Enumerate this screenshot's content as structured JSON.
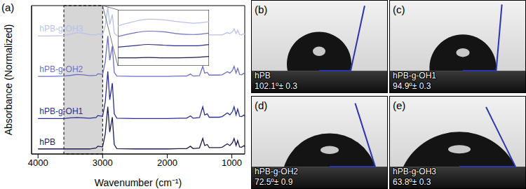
{
  "chart_data": [
    {
      "type": "line",
      "title": "(a)",
      "x_label": "Wavenumber (cm⁻¹)",
      "y_label": "Absorbance (Normalized)",
      "x": [
        4000,
        3800,
        3600,
        3500,
        3400,
        3300,
        3200,
        3100,
        3075,
        3000,
        2960,
        2920,
        2890,
        2850,
        2820,
        2780,
        2500,
        2000,
        1800,
        1700,
        1640,
        1600,
        1500,
        1450,
        1420,
        1380,
        1350,
        1300,
        1200,
        1150,
        1070,
        1030,
        990,
        965,
        935,
        910,
        880,
        850,
        810,
        800
      ],
      "xlim": [
        4100,
        800
      ],
      "xticks": [
        4000,
        3000,
        2000,
        1000
      ],
      "ylim": [
        0,
        4.4
      ],
      "tick_labels": "x",
      "shaded_range": [
        3600,
        3000
      ],
      "series": [
        {
          "name": "hPB",
          "color": "#1a1f4e",
          "values": [
            0.15,
            0.15,
            0.15,
            0.15,
            0.15,
            0.15,
            0.15,
            0.18,
            0.23,
            0.21,
            0.59,
            1.4,
            0.65,
            1.09,
            0.28,
            0.16,
            0.15,
            0.15,
            0.16,
            0.16,
            0.23,
            0.16,
            0.18,
            0.46,
            0.25,
            0.28,
            0.19,
            0.19,
            0.19,
            0.2,
            0.3,
            0.25,
            0.34,
            0.46,
            0.25,
            0.4,
            0.21,
            0.2,
            0.25,
            0.21
          ]
        },
        {
          "name": "hPB-g-OH1",
          "color": "#2b2f8f",
          "values": [
            1.05,
            1.05,
            1.05,
            1.07,
            1.08,
            1.07,
            1.06,
            1.08,
            1.14,
            1.12,
            1.54,
            2.45,
            1.61,
            2.1,
            1.19,
            1.06,
            1.05,
            1.05,
            1.06,
            1.06,
            1.13,
            1.06,
            1.08,
            1.4,
            1.16,
            1.19,
            1.09,
            1.09,
            1.09,
            1.11,
            1.22,
            1.16,
            1.26,
            1.4,
            1.16,
            1.33,
            1.12,
            1.11,
            1.16,
            1.12
          ]
        },
        {
          "name": "hPB-g-OH2",
          "color": "#6a6fc4",
          "values": [
            2.3,
            2.3,
            2.31,
            2.33,
            2.36,
            2.35,
            2.32,
            2.33,
            2.38,
            2.36,
            2.72,
            3.5,
            2.78,
            3.2,
            2.42,
            2.31,
            2.3,
            2.3,
            2.31,
            2.31,
            2.37,
            2.31,
            2.32,
            2.6,
            2.4,
            2.42,
            2.34,
            2.34,
            2.34,
            2.35,
            2.44,
            2.4,
            2.48,
            2.6,
            2.4,
            2.54,
            2.36,
            2.35,
            2.4,
            2.36
          ]
        },
        {
          "name": "hPB-g-OH3",
          "color": "#b7c3e8",
          "values": [
            3.5,
            3.5,
            3.51,
            3.55,
            3.6,
            3.58,
            3.54,
            3.53,
            3.56,
            3.54,
            3.8,
            4.35,
            3.84,
            4.14,
            3.59,
            3.51,
            3.5,
            3.5,
            3.51,
            3.51,
            3.55,
            3.51,
            3.52,
            3.71,
            3.57,
            3.59,
            3.53,
            3.53,
            3.53,
            3.53,
            3.6,
            3.57,
            3.63,
            3.71,
            3.57,
            3.67,
            3.54,
            3.53,
            3.57,
            3.54
          ]
        }
      ]
    },
    {
      "type": "line",
      "x": [
        3600,
        3500,
        3400,
        3300,
        3200,
        3100,
        3000
      ],
      "xlim": [
        3600,
        3000
      ],
      "ylim": [
        0,
        4.2
      ],
      "tick_labels": false,
      "series": [
        {
          "color": "#1a1f4e",
          "values": [
            0.6,
            0.6,
            0.62,
            0.6,
            0.6,
            0.62,
            0.7
          ]
        },
        {
          "color": "#2b2f8f",
          "values": [
            1.4,
            1.5,
            1.6,
            1.55,
            1.5,
            1.5,
            1.6
          ]
        },
        {
          "color": "#6a6fc4",
          "values": [
            2.2,
            2.45,
            2.6,
            2.55,
            2.4,
            2.35,
            2.45
          ]
        },
        {
          "color": "#b7c3e8",
          "values": [
            3.0,
            3.3,
            3.5,
            3.45,
            3.3,
            3.2,
            3.3
          ]
        }
      ]
    }
  ],
  "photos": [
    {
      "label": "(b)",
      "sample": "hPB",
      "contact_angle": 102.1,
      "angle_label": "102.1º± 0.3"
    },
    {
      "label": "(c)",
      "sample": "hPB-g-OH1",
      "contact_angle": 94.9,
      "angle_label": "94.9º± 0.3"
    },
    {
      "label": "(d)",
      "sample": "hPB-g-OH2",
      "contact_angle": 72.5,
      "angle_label": "72.5º± 0.9"
    },
    {
      "label": "(e)",
      "sample": "hPB-g-OH3",
      "contact_angle": 63.8,
      "angle_label": "63.8º± 0.3"
    }
  ]
}
